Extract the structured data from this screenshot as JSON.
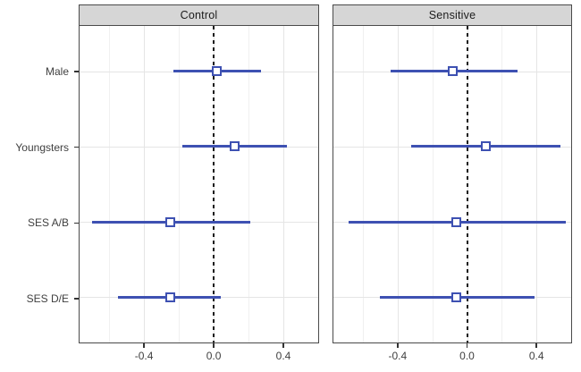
{
  "chart_data": {
    "type": "forest",
    "title": "",
    "facets": [
      "Control",
      "Sensitive"
    ],
    "categories": [
      "Male",
      "Youngsters",
      "SES A/B",
      "SES D/E"
    ],
    "series": [
      {
        "name": "Control",
        "points": [
          {
            "category": "Male",
            "estimate": 0.02,
            "ci_low": -0.23,
            "ci_high": 0.27
          },
          {
            "category": "Youngsters",
            "estimate": 0.12,
            "ci_low": -0.18,
            "ci_high": 0.42
          },
          {
            "category": "SES A/B",
            "estimate": -0.25,
            "ci_low": -0.7,
            "ci_high": 0.21
          },
          {
            "category": "SES D/E",
            "estimate": -0.25,
            "ci_low": -0.55,
            "ci_high": 0.04
          }
        ]
      },
      {
        "name": "Sensitive",
        "points": [
          {
            "category": "Male",
            "estimate": -0.08,
            "ci_low": -0.44,
            "ci_high": 0.29
          },
          {
            "category": "Youngsters",
            "estimate": 0.11,
            "ci_low": -0.32,
            "ci_high": 0.54
          },
          {
            "category": "SES A/B",
            "estimate": -0.06,
            "ci_low": -0.68,
            "ci_high": 0.57
          },
          {
            "category": "SES D/E",
            "estimate": -0.06,
            "ci_low": -0.5,
            "ci_high": 0.39
          }
        ]
      }
    ],
    "x_axis": {
      "tick_labels": [
        "-0.4",
        "0.0",
        "0.4"
      ],
      "tick_values": [
        -0.4,
        0.0,
        0.4
      ],
      "minor_gridlines": [
        -0.6,
        -0.2,
        0.2,
        0.6
      ],
      "range": [
        -0.77,
        0.6
      ]
    },
    "reference_line": {
      "value": 0.0,
      "style": "dashed"
    },
    "marker": "open-square",
    "grid": true,
    "legend": false,
    "colors": {
      "series": "#3e51b2",
      "facet_header_bg": "#d6d6d6",
      "panel_border": "#4a4a4a",
      "grid_major": "#e5e5e5",
      "grid_minor": "#f0f0f0",
      "reference": "#1a1a1a",
      "text": "#404040"
    }
  }
}
